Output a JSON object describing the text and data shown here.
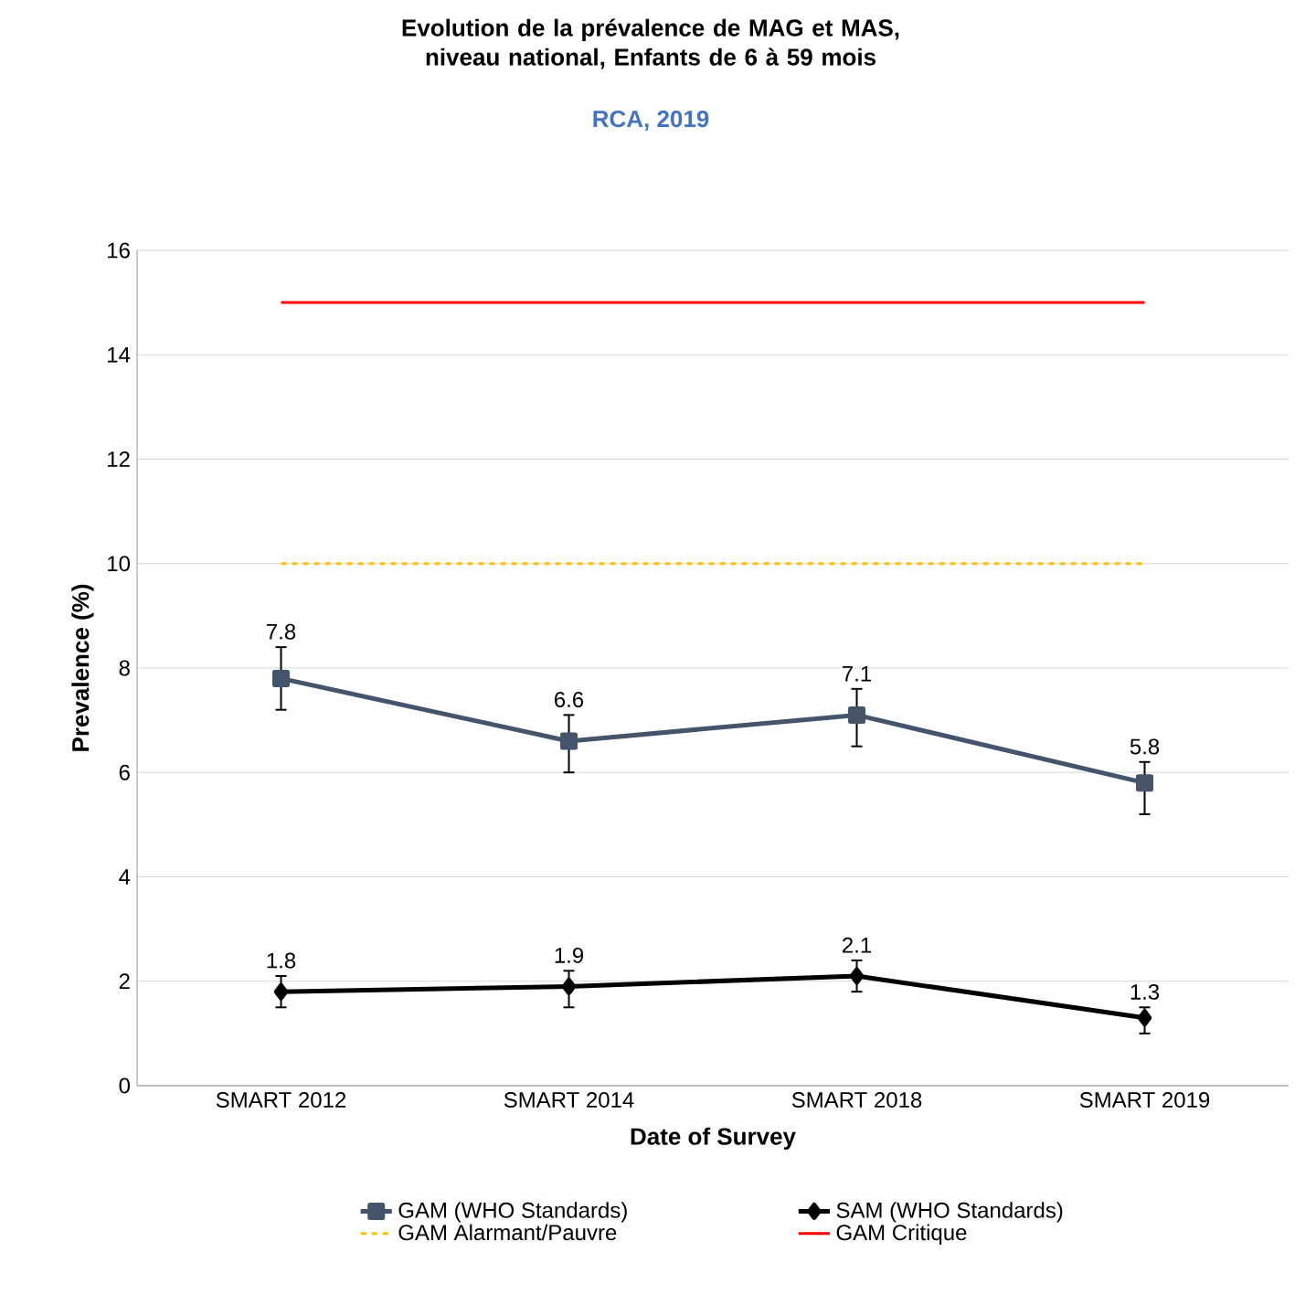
{
  "chart_data": {
    "type": "line",
    "title": "Evolution de la prévalence de MAG et MAS, niveau national, Enfants de 6 à 59 mois",
    "subtitle": "RCA, 2019",
    "xlabel": "Date of Survey",
    "ylabel": "Prevalence (%)",
    "categories": [
      "SMART 2012",
      "SMART 2014",
      "SMART 2018",
      "SMART 2019"
    ],
    "series": [
      {
        "name": "GAM (WHO Standards)",
        "color": "#44546a",
        "values": [
          7.8,
          6.6,
          7.1,
          5.8
        ],
        "errors": [
          [
            7.2,
            8.4
          ],
          [
            6.0,
            7.1
          ],
          [
            6.5,
            7.6
          ],
          [
            5.2,
            6.2
          ]
        ],
        "marker": "square",
        "line_style": "solid",
        "data_labels": true
      },
      {
        "name": "SAM (WHO Standards)",
        "color": "#000000",
        "values": [
          1.8,
          1.9,
          2.1,
          1.3
        ],
        "errors": [
          [
            1.5,
            2.1
          ],
          [
            1.5,
            2.2
          ],
          [
            1.8,
            2.4
          ],
          [
            1.0,
            1.5
          ]
        ],
        "marker": "diamond",
        "line_style": "solid",
        "data_labels": true
      },
      {
        "name": "GAM Alarmant/Pauvre",
        "color": "#ffc000",
        "values": [
          10,
          10,
          10,
          10
        ],
        "marker": "none",
        "line_style": "dashed"
      },
      {
        "name": "GAM Critique",
        "color": "#ff0000",
        "values": [
          15,
          15,
          15,
          15
        ],
        "marker": "none",
        "line_style": "solid"
      }
    ],
    "ylim": [
      0,
      16
    ],
    "yticks": [
      0,
      2,
      4,
      6,
      8,
      10,
      12,
      14,
      16
    ],
    "grid": "y",
    "legend": "bottom"
  }
}
